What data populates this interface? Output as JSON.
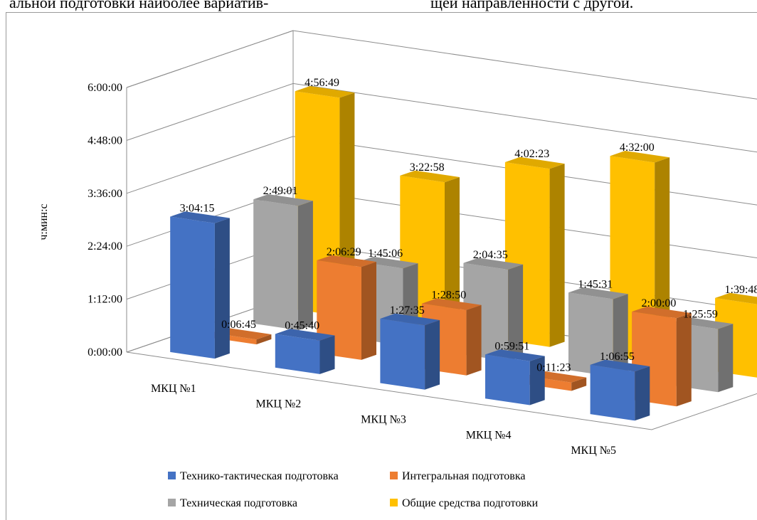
{
  "page_text": {
    "top_left": "альной  подготовки  наиболее  вариатив-",
    "top_right": "щей направленности с другой."
  },
  "colors": {
    "Технико-тактическая подготовка": "#4472c4",
    "Интегральная подготовка": "#ed7d31",
    "Техническая подготовка": "#a5a5a5",
    "Общие средства подготовки": "#ffc000"
  },
  "chart_data": {
    "type": "bar",
    "subtype": "3d-clustered-column",
    "title": "",
    "xlabel": "",
    "ylabel": "ч:мин:с",
    "ylim_seconds": [
      0,
      21600
    ],
    "y_ticks": [
      "0:00:00",
      "1:12:00",
      "2:24:00",
      "3:36:00",
      "4:48:00",
      "6:00:00"
    ],
    "categories": [
      "МКЦ №1",
      "МКЦ №2",
      "МКЦ №3",
      "МКЦ №4",
      "МКЦ №5"
    ],
    "legend_position": "bottom",
    "grid": true,
    "series": [
      {
        "name": "Технико-тактическая подготовка",
        "labels": [
          "3:04:15",
          "0:45:40",
          "1:27:35",
          "0:59:51",
          "1:06:55"
        ],
        "values_seconds": [
          11055,
          2740,
          5255,
          3591,
          4015
        ]
      },
      {
        "name": "Интегральная подготовка",
        "labels": [
          "0:06:45",
          "2:06:29",
          "1:28:50",
          "0:11:23",
          "2:00:00"
        ],
        "values_seconds": [
          405,
          7589,
          5330,
          683,
          7200
        ]
      },
      {
        "name": "Техническая подготовка",
        "labels": [
          "2:49:01",
          "1:45:06",
          "2:04:35",
          "1:45:31",
          "1:25:59"
        ],
        "values_seconds": [
          10141,
          6306,
          7475,
          6331,
          5159
        ]
      },
      {
        "name": "Общие средства подготовки",
        "labels": [
          "4:56:49",
          "3:22:58",
          "4:02:23",
          "4:32:00",
          "1:39:48"
        ],
        "values_seconds": [
          17809,
          12178,
          14543,
          16320,
          5988
        ]
      }
    ]
  }
}
